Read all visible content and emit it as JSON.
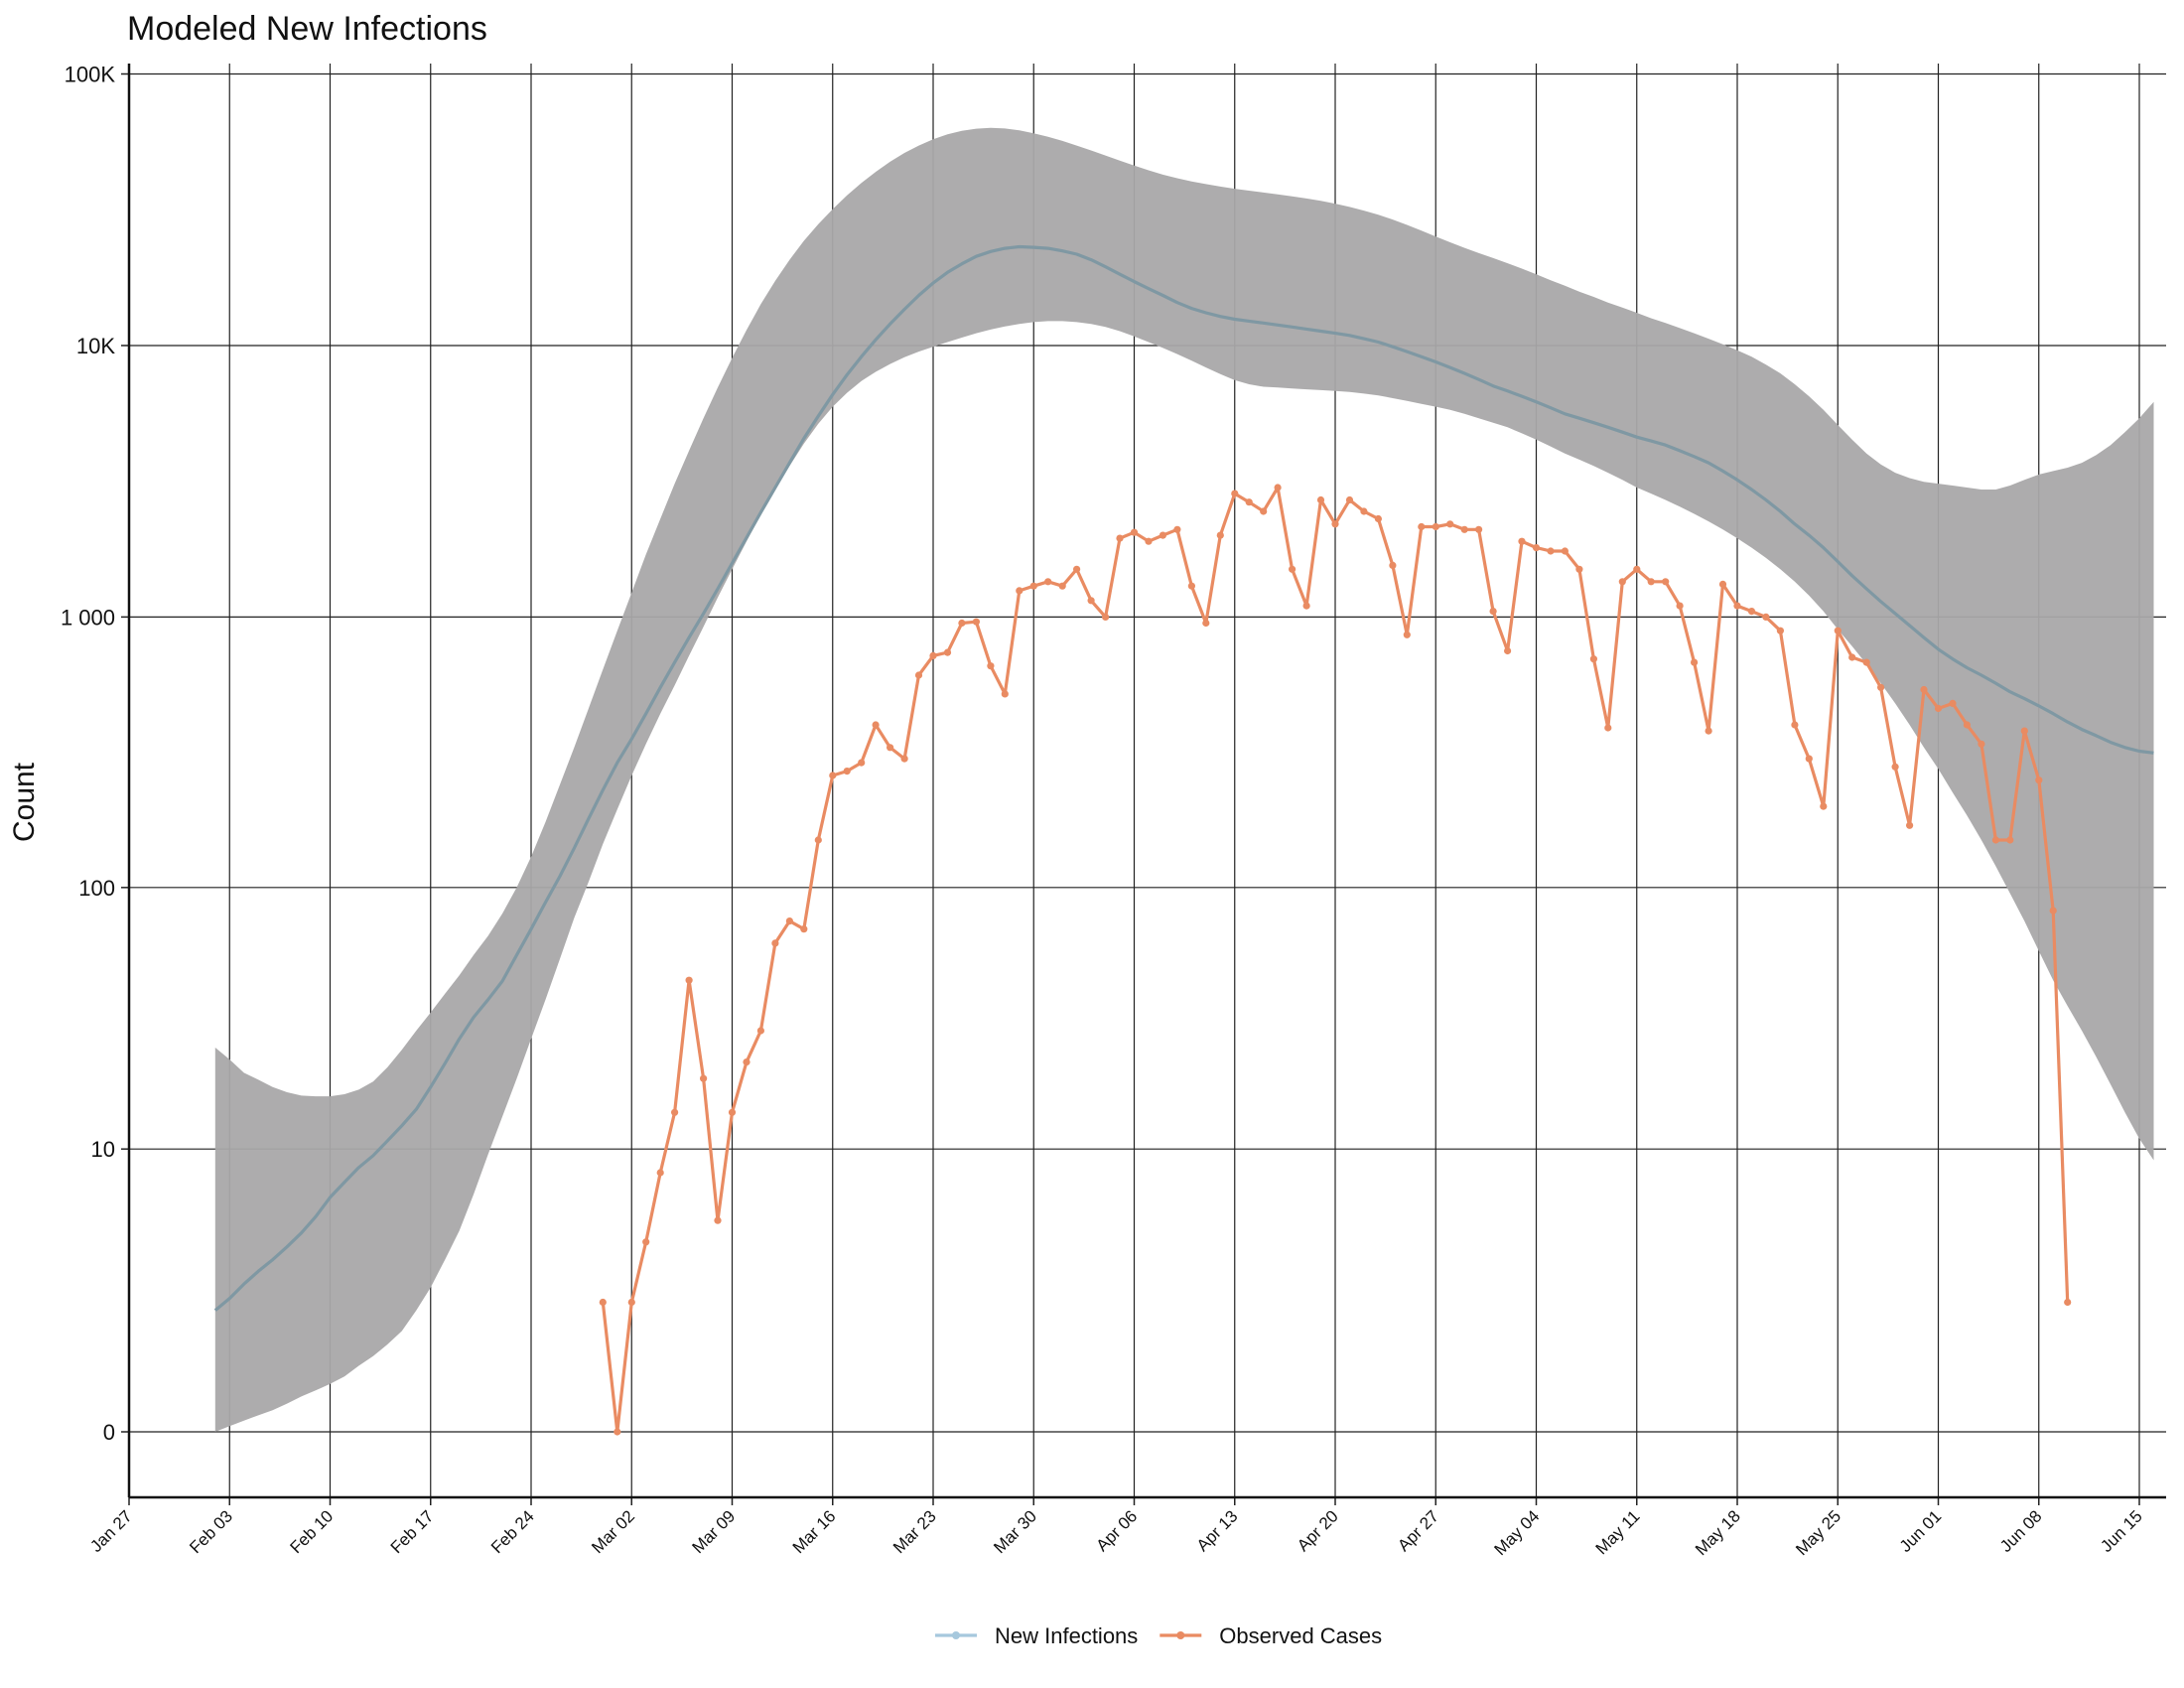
{
  "chart_data": {
    "type": "line",
    "title": "Modeled New Infections",
    "xlabel": "",
    "ylabel": "Count",
    "yscale": "log (offset so 0 is shown)",
    "x_ticks": [
      "Jan 27",
      "Feb 03",
      "Feb 10",
      "Feb 17",
      "Feb 24",
      "Mar 02",
      "Mar 09",
      "Mar 16",
      "Mar 23",
      "Mar 30",
      "Apr 06",
      "Apr 13",
      "Apr 20",
      "Apr 27",
      "May 04",
      "May 11",
      "May 18",
      "May 25",
      "Jun 01",
      "Jun 08",
      "Jun 15"
    ],
    "y_ticks": [
      {
        "value": 0,
        "label": "0"
      },
      {
        "value": 10,
        "label": "10"
      },
      {
        "value": 100,
        "label": "100"
      },
      {
        "value": 1000,
        "label": "1 000"
      },
      {
        "value": 10000,
        "label": "10K"
      },
      {
        "value": 100000,
        "label": "100K"
      }
    ],
    "grid": true,
    "legend": "bottom-center",
    "series": [
      {
        "name": "New Infections",
        "color": "#7f98a3",
        "legend_color": "#a6c8dd",
        "start_date": "2020-02-02",
        "values": [
          1.8,
          2.1,
          2.5,
          2.9,
          3.3,
          3.8,
          4.4,
          5.2,
          6.3,
          7.3,
          8.4,
          9.4,
          10.8,
          12.4,
          14.4,
          17.6,
          21.7,
          27,
          32.6,
          38,
          44.7,
          56,
          70,
          88,
          110,
          140,
          180,
          230,
          290,
          355,
          440,
          550,
          680,
          840,
          1030,
          1270,
          1580,
          1960,
          2430,
          3000,
          3700,
          4550,
          5500,
          6600,
          7800,
          9100,
          10500,
          12000,
          13600,
          15300,
          17000,
          18600,
          20000,
          21300,
          22200,
          22800,
          23100,
          23000,
          22800,
          22300,
          21700,
          20700,
          19500,
          18300,
          17200,
          16200,
          15300,
          14400,
          13700,
          13200,
          12800,
          12500,
          12300,
          12100,
          11900,
          11700,
          11500,
          11300,
          11100,
          10900,
          10600,
          10300,
          9900,
          9500,
          9100,
          8700,
          8300,
          7900,
          7500,
          7100,
          6800,
          6500,
          6200,
          5900,
          5600,
          5400,
          5200,
          5000,
          4800,
          4600,
          4450,
          4300,
          4100,
          3900,
          3700,
          3450,
          3200,
          2950,
          2700,
          2450,
          2200,
          2000,
          1800,
          1600,
          1420,
          1270,
          1140,
          1030,
          930,
          840,
          760,
          700,
          650,
          610,
          570,
          530,
          500,
          470,
          440,
          410,
          385,
          365,
          345,
          330,
          320,
          315
        ]
      },
      {
        "name": "",
        "band": "New Infections interval",
        "color": "#a9a8a9",
        "start_date": "2020-02-02",
        "lower": [
          0,
          0.05,
          0.1,
          0.15,
          0.2,
          0.27,
          0.35,
          0.42,
          0.5,
          0.6,
          0.75,
          0.9,
          1.1,
          1.35,
          1.8,
          2.4,
          3.3,
          4.5,
          6.5,
          9.5,
          13.5,
          19,
          27,
          38,
          54,
          77,
          105,
          145,
          195,
          260,
          340,
          440,
          560,
          720,
          920,
          1180,
          1500,
          1900,
          2380,
          2950,
          3600,
          4350,
          5150,
          5950,
          6700,
          7400,
          8000,
          8550,
          9050,
          9500,
          9900,
          10300,
          10700,
          11100,
          11450,
          11750,
          12000,
          12200,
          12300,
          12300,
          12200,
          12000,
          11700,
          11300,
          10800,
          10300,
          9800,
          9300,
          8800,
          8300,
          7850,
          7450,
          7200,
          7050,
          7000,
          6950,
          6900,
          6850,
          6800,
          6750,
          6650,
          6550,
          6400,
          6250,
          6100,
          5950,
          5800,
          5600,
          5400,
          5200,
          5000,
          4750,
          4500,
          4250,
          4000,
          3800,
          3600,
          3400,
          3200,
          3000,
          2850,
          2700,
          2550,
          2400,
          2250,
          2100,
          1950,
          1800,
          1650,
          1500,
          1350,
          1200,
          1050,
          900,
          780,
          670,
          570,
          480,
          400,
          330,
          275,
          225,
          185,
          150,
          120,
          95,
          75,
          58,
          45,
          36,
          29,
          23,
          18,
          14,
          11,
          9
        ],
        "upper": [
          25,
          22.5,
          20,
          18.8,
          17.6,
          16.8,
          16.3,
          16.2,
          16.2,
          16.5,
          17.2,
          18.5,
          21,
          24.5,
          29,
          34,
          40,
          47,
          56,
          66,
          80,
          100,
          130,
          175,
          240,
          330,
          460,
          640,
          890,
          1230,
          1700,
          2300,
          3100,
          4100,
          5400,
          7000,
          9000,
          11400,
          14200,
          17300,
          20700,
          24300,
          28000,
          31800,
          35700,
          39700,
          43600,
          47500,
          51200,
          54500,
          57500,
          60000,
          61800,
          62900,
          63300,
          63000,
          62000,
          60500,
          58700,
          56700,
          54500,
          52300,
          50100,
          48000,
          46000,
          44200,
          42600,
          41300,
          40200,
          39300,
          38500,
          37800,
          37200,
          36600,
          36000,
          35400,
          34800,
          34100,
          33300,
          32400,
          31400,
          30300,
          29100,
          27800,
          26500,
          25200,
          24000,
          22900,
          21900,
          21000,
          20100,
          19200,
          18300,
          17400,
          16600,
          15800,
          15100,
          14400,
          13800,
          13200,
          12600,
          12100,
          11600,
          11100,
          10600,
          10100,
          9600,
          9100,
          8500,
          7900,
          7200,
          6500,
          5800,
          5100,
          4500,
          4000,
          3650,
          3400,
          3250,
          3150,
          3100,
          3050,
          3000,
          2950,
          2950,
          3050,
          3200,
          3350,
          3450,
          3550,
          3700,
          3950,
          4300,
          4800,
          5400,
          6200
        ]
      },
      {
        "name": "Observed Cases",
        "color": "#e98b62",
        "start_date": "2020-02-29",
        "values": [
          2,
          0,
          2,
          4,
          8,
          14,
          45,
          19,
          5,
          14,
          22,
          29,
          62,
          75,
          70,
          150,
          260,
          270,
          290,
          400,
          330,
          300,
          610,
          720,
          740,
          950,
          960,
          660,
          520,
          1250,
          1300,
          1350,
          1300,
          1500,
          1150,
          1000,
          1950,
          2050,
          1900,
          2000,
          2100,
          1300,
          950,
          2000,
          2850,
          2650,
          2450,
          3000,
          1500,
          1100,
          2700,
          2200,
          2700,
          2450,
          2300,
          1550,
          860,
          2150,
          2150,
          2200,
          2100,
          2100,
          1050,
          750,
          1900,
          1800,
          1750,
          1750,
          1500,
          700,
          390,
          1350,
          1500,
          1350,
          1350,
          1100,
          680,
          380,
          1320,
          1100,
          1050,
          1000,
          890,
          400,
          300,
          200,
          890,
          710,
          680,
          550,
          280,
          170,
          540,
          460,
          480,
          400,
          340,
          150,
          150,
          380,
          250,
          82,
          2
        ]
      }
    ]
  }
}
